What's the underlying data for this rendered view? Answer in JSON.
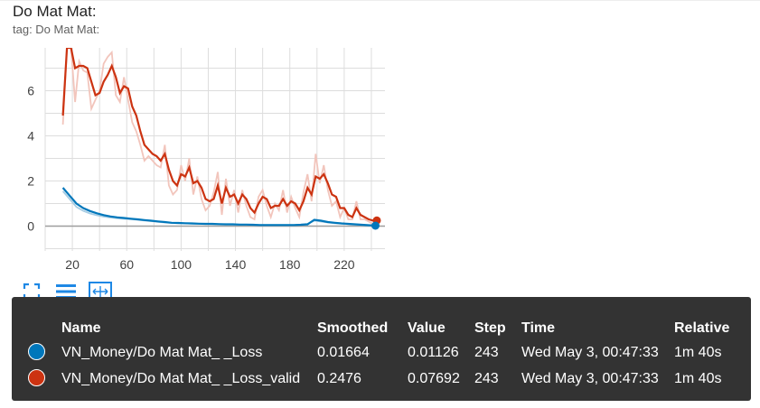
{
  "card": {
    "title": "Do Mat Mat:",
    "subtitle": "tag: Do Mat Mat:"
  },
  "toolbar": {
    "icons": [
      "fullscreen-icon",
      "list-icon",
      "fit-domain-icon"
    ],
    "color": "#1e88e5"
  },
  "chart_data": {
    "type": "line",
    "xlim": [
      0,
      250
    ],
    "ylim": [
      -1.1,
      7.9
    ],
    "xticks": [
      20,
      60,
      100,
      140,
      180,
      220
    ],
    "yticks": [
      0,
      2,
      4,
      6
    ],
    "grid": true,
    "series": [
      {
        "name": "VN_Money/Do Mat Mat_ _Loss",
        "color": "#0077bb",
        "raw_color": "#a6cce3",
        "x": [
          13,
          18,
          23,
          28,
          33,
          38,
          43,
          48,
          53,
          58,
          63,
          68,
          73,
          78,
          83,
          88,
          93,
          98,
          103,
          108,
          113,
          118,
          123,
          128,
          133,
          138,
          143,
          148,
          153,
          158,
          163,
          168,
          173,
          178,
          183,
          188,
          193,
          198,
          203,
          208,
          213,
          218,
          223,
          228,
          233,
          238,
          243
        ],
        "smoothed": [
          1.7,
          1.35,
          1.0,
          0.8,
          0.67,
          0.57,
          0.49,
          0.43,
          0.39,
          0.36,
          0.33,
          0.3,
          0.27,
          0.24,
          0.21,
          0.18,
          0.15,
          0.14,
          0.13,
          0.12,
          0.11,
          0.1,
          0.1,
          0.09,
          0.08,
          0.08,
          0.07,
          0.07,
          0.06,
          0.05,
          0.05,
          0.05,
          0.05,
          0.05,
          0.05,
          0.06,
          0.08,
          0.28,
          0.24,
          0.18,
          0.15,
          0.12,
          0.1,
          0.08,
          0.06,
          0.04,
          0.02
        ],
        "raw": [
          1.55,
          1.2,
          0.85,
          0.68,
          0.56,
          0.48,
          0.42,
          0.38,
          0.35,
          0.33,
          0.31,
          0.28,
          0.25,
          0.22,
          0.19,
          0.16,
          0.14,
          0.13,
          0.12,
          0.11,
          0.1,
          0.1,
          0.09,
          0.09,
          0.08,
          0.07,
          0.07,
          0.06,
          0.05,
          0.05,
          0.05,
          0.05,
          0.05,
          0.05,
          0.05,
          0.07,
          0.1,
          0.24,
          0.2,
          0.16,
          0.13,
          0.11,
          0.09,
          0.07,
          0.05,
          0.03,
          0.01
        ]
      },
      {
        "name": "VN_Money/Do Mat Mat_ _Loss_valid",
        "color": "#cc3311",
        "raw_color": "#f2c5bc",
        "x": [
          13,
          16,
          19,
          22,
          25,
          28,
          31,
          34,
          37,
          40,
          43,
          46,
          49,
          52,
          55,
          58,
          61,
          64,
          67,
          70,
          73,
          76,
          79,
          82,
          85,
          88,
          91,
          94,
          97,
          100,
          103,
          106,
          109,
          112,
          115,
          118,
          121,
          124,
          127,
          130,
          133,
          136,
          139,
          142,
          145,
          148,
          151,
          154,
          157,
          160,
          163,
          166,
          169,
          172,
          175,
          178,
          181,
          184,
          187,
          190,
          193,
          196,
          199,
          202,
          205,
          208,
          211,
          214,
          217,
          220,
          223,
          226,
          229,
          232,
          235,
          238,
          241,
          244
        ],
        "smoothed": [
          4.9,
          7.9,
          7.9,
          7.0,
          7.1,
          7.1,
          7.0,
          6.4,
          5.8,
          5.9,
          6.4,
          6.7,
          7.1,
          6.6,
          5.9,
          6.2,
          6.1,
          5.3,
          4.9,
          4.2,
          3.6,
          3.4,
          3.2,
          3.1,
          2.9,
          3.2,
          2.5,
          2.0,
          1.8,
          2.3,
          2.2,
          2.6,
          1.9,
          2.0,
          1.7,
          1.2,
          1.1,
          1.2,
          1.8,
          1.0,
          1.7,
          1.3,
          1.4,
          1.0,
          1.4,
          1.2,
          0.8,
          0.6,
          1.0,
          1.3,
          1.2,
          0.8,
          0.9,
          0.9,
          1.2,
          0.9,
          1.1,
          1.0,
          0.7,
          1.1,
          1.7,
          1.4,
          2.2,
          2.1,
          2.3,
          1.9,
          1.4,
          1.3,
          0.8,
          0.8,
          0.5,
          0.4,
          0.8,
          0.5,
          0.4,
          0.3,
          0.25,
          0.25
        ],
        "raw": [
          4.5,
          7.9,
          7.9,
          5.5,
          7.3,
          6.9,
          6.8,
          5.2,
          5.6,
          6.0,
          7.2,
          7.5,
          7.7,
          5.8,
          5.5,
          6.6,
          5.6,
          4.6,
          4.2,
          3.6,
          2.9,
          3.1,
          2.9,
          2.7,
          2.6,
          3.6,
          1.8,
          1.4,
          1.6,
          2.7,
          2.0,
          3.0,
          1.4,
          2.2,
          1.2,
          0.7,
          0.9,
          1.5,
          2.4,
          0.5,
          2.1,
          0.9,
          1.6,
          0.6,
          1.6,
          0.9,
          0.4,
          0.3,
          1.3,
          1.6,
          0.9,
          0.4,
          1.0,
          0.7,
          1.6,
          0.6,
          1.3,
          0.8,
          0.4,
          1.5,
          2.3,
          1.1,
          3.2,
          1.9,
          2.7,
          1.6,
          0.9,
          1.1,
          0.4,
          0.8,
          0.3,
          0.3,
          1.1,
          0.3,
          0.3,
          0.2,
          0.1,
          0.08
        ]
      }
    ]
  },
  "tooltip": {
    "headers": [
      "Name",
      "Smoothed",
      "Value",
      "Step",
      "Time",
      "Relative"
    ],
    "rows": [
      {
        "color": "#0077bb",
        "name": "VN_Money/Do Mat Mat_ _Loss",
        "smoothed": "0.01664",
        "value": "0.01126",
        "step": "243",
        "time": "Wed May 3, 00:47:33",
        "relative": "1m 40s"
      },
      {
        "color": "#cc3311",
        "name": "VN_Money/Do Mat Mat_ _Loss_valid",
        "smoothed": "0.2476",
        "value": "0.07692",
        "step": "243",
        "time": "Wed May 3, 00:47:33",
        "relative": "1m 40s"
      }
    ]
  }
}
